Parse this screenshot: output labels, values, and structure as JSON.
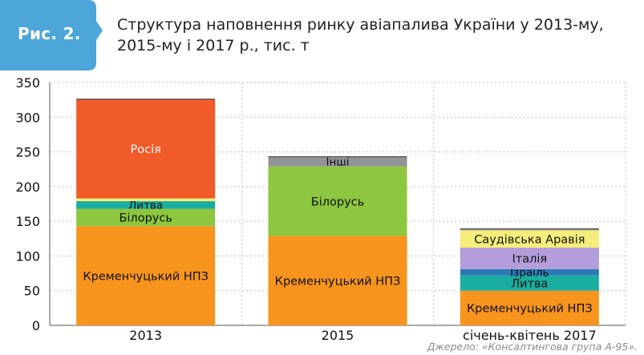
{
  "figure": {
    "badge": "Рис. 2.",
    "title": "Структура наповнення ринку авіапалива України у 2013-му, 2015-му і 2017 р., тис. т",
    "source": "Джерело: «Консалтингова група А-95»."
  },
  "colors": {
    "badge_bg": "#4da6d9",
    "title_text": "#222222",
    "axis_text": "#111111"
  },
  "chart_data": {
    "type": "bar",
    "stacked": true,
    "categories": [
      "2013",
      "2015",
      "січень-квітень 2017"
    ],
    "ylim": [
      0,
      350
    ],
    "yticks": [
      0,
      50,
      100,
      150,
      200,
      250,
      300,
      350
    ],
    "grid": "dotted",
    "series": [
      {
        "name": "Кременчуцький НПЗ",
        "color": "#f7941d",
        "values": [
          143,
          129,
          50
        ]
      },
      {
        "name": "Білорусь",
        "color": "#8dc63f",
        "values": [
          25,
          100,
          0
        ]
      },
      {
        "name": "Литва",
        "color": "#1aada0",
        "values": [
          11,
          0,
          22
        ]
      },
      {
        "name": "Ізраїль",
        "color": "#2a7ab8",
        "values": [
          0,
          0,
          9
        ]
      },
      {
        "name": "Італія",
        "color": "#b39ddb",
        "values": [
          0,
          0,
          31
        ]
      },
      {
        "name": "Саудівська Аравія",
        "color": "#f5ee7a",
        "values": [
          4,
          0,
          25
        ]
      },
      {
        "name": "Росія",
        "color": "#f15a29",
        "values": [
          143,
          0,
          0
        ]
      },
      {
        "name": "Інші",
        "color": "#939393",
        "values": [
          0,
          14,
          2
        ]
      }
    ],
    "segment_labels": [
      [
        "Кременчуцький НПЗ",
        "Білорусь",
        "Литва",
        "",
        "",
        "",
        "Росія",
        ""
      ],
      [
        "Кременчуцький НПЗ",
        "Білорусь",
        "",
        "",
        "",
        "",
        "",
        "Інші"
      ],
      [
        "Кременчуцький НПЗ",
        "",
        "Литва",
        "Ізраїль",
        "Італія",
        "Саудівська Аравія",
        "",
        ""
      ]
    ]
  }
}
